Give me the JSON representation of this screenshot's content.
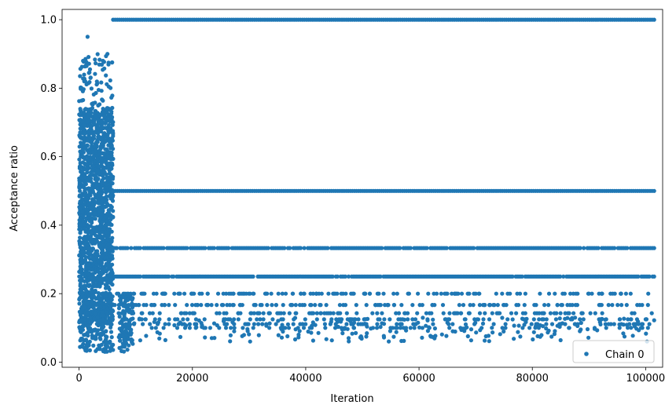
{
  "chart_data": {
    "type": "scatter",
    "title": "",
    "xlabel": "Iteration",
    "ylabel": "Acceptance ratio",
    "xlim": [
      -3000,
      103000
    ],
    "ylim": [
      -0.015,
      1.03
    ],
    "x_ticks": [
      0,
      20000,
      40000,
      60000,
      80000,
      100000
    ],
    "x_tick_labels": [
      "0",
      "20000",
      "40000",
      "60000",
      "80000",
      "100000"
    ],
    "y_ticks": [
      0.0,
      0.2,
      0.4,
      0.6,
      0.8,
      1.0
    ],
    "y_tick_labels": [
      "0.0",
      "0.2",
      "0.4",
      "0.6",
      "0.8",
      "1.0"
    ],
    "grid": false,
    "legend": {
      "position": "bottom-right",
      "entries": [
        "Chain 0"
      ]
    },
    "series": [
      {
        "name": "Chain 0",
        "color": "#1f77b4",
        "marker": "circle",
        "burn_in_phase": {
          "x_range": [
            0,
            6000
          ],
          "y_range": [
            0.03,
            0.95
          ]
        },
        "plateau_phase": {
          "x_range": [
            6000,
            101500
          ],
          "levels": [
            1.0,
            0.5,
            0.333,
            0.25,
            0.2,
            0.167,
            0.143,
            0.125,
            0.111,
            0.1
          ],
          "min_y": 0.03
        }
      }
    ]
  }
}
